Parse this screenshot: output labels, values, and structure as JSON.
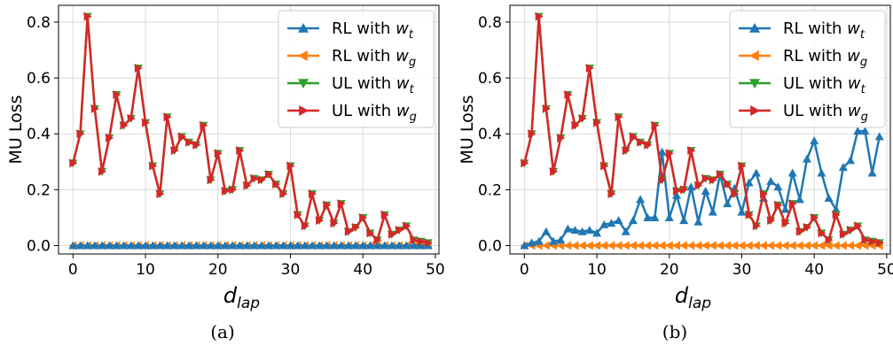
{
  "colors": {
    "rl_wt": "#1f77b4",
    "rl_wg": "#ff7f0e",
    "ul_wt": "#2ca02c",
    "ul_wg": "#d62728",
    "grid": "#d9d9d9"
  },
  "legend_labels": [
    {
      "base": "RL with ",
      "sym": "w",
      "sub": "t"
    },
    {
      "base": "RL with ",
      "sym": "w",
      "sub": "g"
    },
    {
      "base": "UL with ",
      "sym": "w",
      "sub": "t"
    },
    {
      "base": "UL with ",
      "sym": "w",
      "sub": "g"
    }
  ],
  "chart_data": [
    {
      "type": "line",
      "caption": "(a)",
      "ylabel": "MU Loss",
      "xlabel": {
        "base": "d",
        "sub": "lap"
      },
      "xlim": [
        -2,
        50.5
      ],
      "ylim": [
        -0.03,
        0.86
      ],
      "xticks": [
        0,
        10,
        20,
        30,
        40,
        50
      ],
      "yticks": [
        0.0,
        0.2,
        0.4,
        0.6,
        0.8
      ],
      "ytick_labels": [
        "0.0",
        "0.2",
        "0.4",
        "0.6",
        "0.8"
      ],
      "legend_position": "top-right",
      "grid": true,
      "series": [
        {
          "name": "RL with w_t",
          "color_key": "rl_wt",
          "marker": "triangle-up",
          "values": [
            0,
            0,
            0,
            0,
            0,
            0,
            0,
            0,
            0,
            0,
            0,
            0,
            0,
            0,
            0,
            0,
            0,
            0,
            0,
            0,
            0,
            0,
            0,
            0,
            0,
            0,
            0,
            0,
            0,
            0,
            0,
            0,
            0,
            0,
            0,
            0,
            0,
            0,
            0,
            0,
            0,
            0,
            0,
            0,
            0,
            0,
            0,
            0,
            0,
            0
          ]
        },
        {
          "name": "RL with w_g",
          "color_key": "rl_wg",
          "marker": "triangle-left",
          "values": [
            0,
            0,
            0,
            0,
            0,
            0,
            0,
            0,
            0,
            0,
            0,
            0,
            0,
            0,
            0,
            0,
            0,
            0,
            0,
            0,
            0,
            0,
            0,
            0,
            0,
            0,
            0,
            0,
            0,
            0,
            0,
            0,
            0,
            0,
            0,
            0,
            0,
            0,
            0,
            0,
            0,
            0,
            0,
            0,
            0,
            0,
            0,
            0,
            0,
            0
          ]
        },
        {
          "name": "UL with w_t",
          "color_key": "ul_wt",
          "marker": "triangle-down",
          "values": [
            0.295,
            0.4,
            0.82,
            0.49,
            0.265,
            0.385,
            0.54,
            0.43,
            0.455,
            0.635,
            0.44,
            0.285,
            0.185,
            0.46,
            0.34,
            0.39,
            0.37,
            0.36,
            0.43,
            0.235,
            0.33,
            0.195,
            0.2,
            0.34,
            0.215,
            0.24,
            0.235,
            0.255,
            0.22,
            0.185,
            0.285,
            0.11,
            0.07,
            0.185,
            0.09,
            0.145,
            0.08,
            0.15,
            0.05,
            0.065,
            0.1,
            0.045,
            0.02,
            0.11,
            0.04,
            0.055,
            0.07,
            0.02,
            0.015,
            0.01
          ]
        },
        {
          "name": "UL with w_g",
          "color_key": "ul_wg",
          "marker": "triangle-right",
          "values": [
            0.295,
            0.4,
            0.82,
            0.49,
            0.265,
            0.385,
            0.54,
            0.43,
            0.455,
            0.635,
            0.44,
            0.285,
            0.185,
            0.46,
            0.34,
            0.39,
            0.37,
            0.36,
            0.43,
            0.235,
            0.33,
            0.195,
            0.2,
            0.34,
            0.215,
            0.24,
            0.235,
            0.255,
            0.22,
            0.185,
            0.285,
            0.11,
            0.07,
            0.185,
            0.09,
            0.145,
            0.08,
            0.15,
            0.05,
            0.065,
            0.1,
            0.045,
            0.02,
            0.11,
            0.04,
            0.055,
            0.07,
            0.02,
            0.015,
            0.01
          ]
        }
      ]
    },
    {
      "type": "line",
      "caption": "(b)",
      "ylabel": "MU Loss",
      "xlabel": {
        "base": "d",
        "sub": "lap"
      },
      "xlim": [
        -2,
        50.5
      ],
      "ylim": [
        -0.03,
        0.86
      ],
      "xticks": [
        0,
        10,
        20,
        30,
        40,
        50
      ],
      "yticks": [
        0.0,
        0.2,
        0.4,
        0.6,
        0.8
      ],
      "ytick_labels": [
        "0.0",
        "0.2",
        "0.4",
        "0.6",
        "0.8"
      ],
      "legend_position": "top-right",
      "grid": true,
      "series": [
        {
          "name": "RL with w_t",
          "color_key": "rl_wt",
          "marker": "triangle-up",
          "values": [
            0,
            0.01,
            0.015,
            0.05,
            0.015,
            0.02,
            0.06,
            0.055,
            0.05,
            0.055,
            0.045,
            0.075,
            0.08,
            0.09,
            0.05,
            0.09,
            0.165,
            0.1,
            0.1,
            0.335,
            0.1,
            0.18,
            0.09,
            0.21,
            0.085,
            0.195,
            0.12,
            0.255,
            0.15,
            0.205,
            0.12,
            0.225,
            0.26,
            0.17,
            0.23,
            0.21,
            0.13,
            0.26,
            0.165,
            0.31,
            0.375,
            0.26,
            0.17,
            0.13,
            0.28,
            0.305,
            0.41,
            0.41,
            0.26,
            0.39
          ]
        },
        {
          "name": "RL with w_g",
          "color_key": "rl_wg",
          "marker": "triangle-left",
          "values": [
            0,
            0,
            0,
            0,
            0,
            0,
            0,
            0,
            0,
            0,
            0,
            0,
            0,
            0,
            0,
            0,
            0,
            0,
            0,
            0,
            0,
            0,
            0,
            0,
            0,
            0,
            0,
            0,
            0,
            0,
            0,
            0,
            0,
            0,
            0,
            0,
            0,
            0,
            0,
            0,
            0,
            0,
            0,
            0,
            0,
            0,
            0,
            0,
            0,
            0
          ]
        },
        {
          "name": "UL with w_t",
          "color_key": "ul_wt",
          "marker": "triangle-down",
          "values": [
            0.295,
            0.4,
            0.82,
            0.49,
            0.265,
            0.385,
            0.54,
            0.43,
            0.455,
            0.635,
            0.44,
            0.285,
            0.185,
            0.46,
            0.34,
            0.39,
            0.37,
            0.36,
            0.43,
            0.235,
            0.33,
            0.195,
            0.2,
            0.34,
            0.215,
            0.24,
            0.235,
            0.255,
            0.22,
            0.185,
            0.285,
            0.11,
            0.07,
            0.185,
            0.09,
            0.145,
            0.08,
            0.15,
            0.05,
            0.065,
            0.1,
            0.045,
            0.02,
            0.11,
            0.04,
            0.055,
            0.07,
            0.02,
            0.015,
            0.01
          ]
        },
        {
          "name": "UL with w_g",
          "color_key": "ul_wg",
          "marker": "triangle-right",
          "values": [
            0.295,
            0.4,
            0.82,
            0.49,
            0.265,
            0.385,
            0.54,
            0.43,
            0.455,
            0.635,
            0.44,
            0.285,
            0.185,
            0.46,
            0.34,
            0.39,
            0.37,
            0.36,
            0.43,
            0.235,
            0.33,
            0.195,
            0.2,
            0.34,
            0.215,
            0.24,
            0.235,
            0.255,
            0.22,
            0.185,
            0.285,
            0.11,
            0.07,
            0.185,
            0.09,
            0.145,
            0.08,
            0.15,
            0.05,
            0.065,
            0.1,
            0.045,
            0.02,
            0.11,
            0.04,
            0.055,
            0.07,
            0.02,
            0.015,
            0.01
          ]
        }
      ]
    }
  ]
}
